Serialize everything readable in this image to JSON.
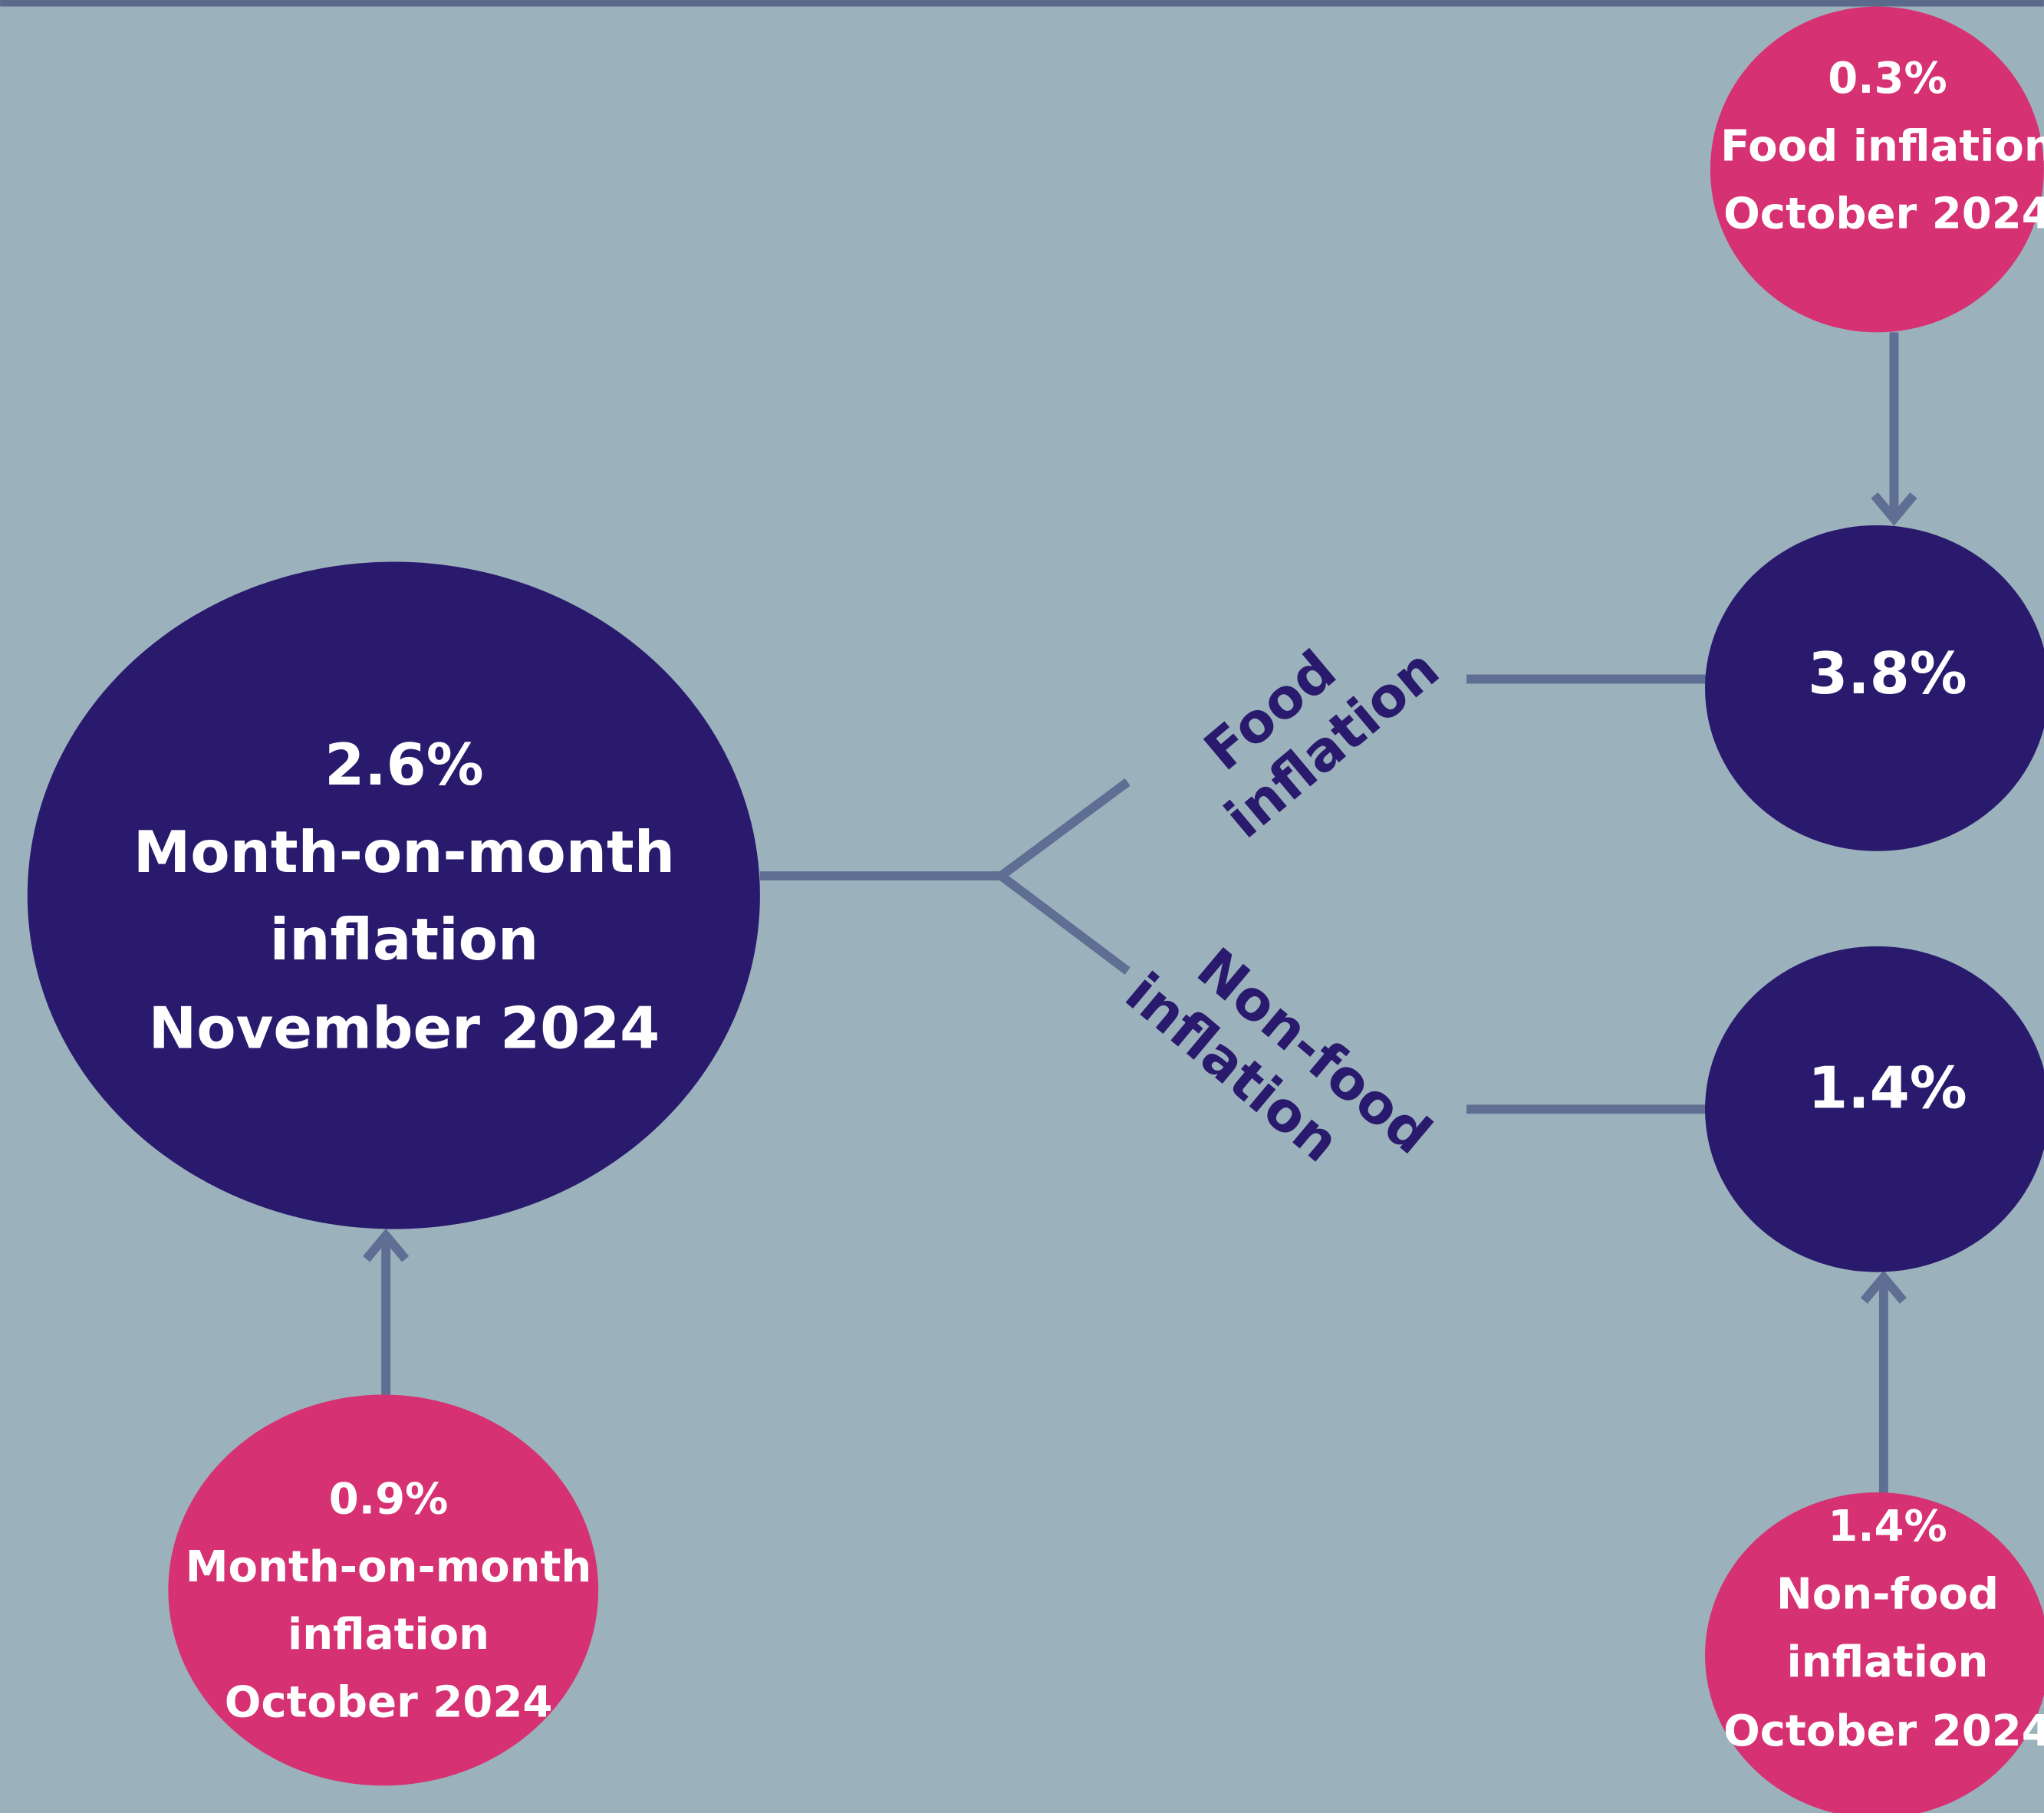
{
  "main": {
    "lines": [
      "2.6%",
      "Month-on-month",
      "inflation",
      "November 2024"
    ]
  },
  "food": {
    "value": "3.8%",
    "label": [
      "Food",
      "inflation"
    ]
  },
  "nonfood": {
    "value": "1.4%",
    "label": [
      "Non-food",
      "inflation"
    ]
  },
  "previous_main": {
    "lines": [
      "0.9%",
      "Month-on-month",
      "inflation",
      "October 2024"
    ]
  },
  "previous_food": {
    "lines": [
      "0.3%",
      "Food inflation",
      "October 2024"
    ]
  },
  "previous_nonfood": {
    "lines": [
      "1.4%",
      "Non-food",
      "inflation",
      "October 2024"
    ]
  }
}
